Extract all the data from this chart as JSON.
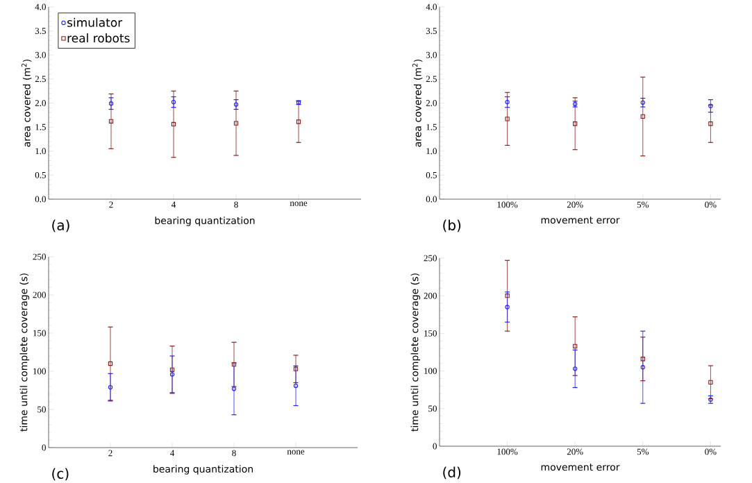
{
  "chart_data": [
    {
      "type": "scatter",
      "categories": [
        "2",
        "4",
        "8",
        "none"
      ],
      "xlabel": "bearing quantization",
      "ylabel": "area covered (m$^{2}$)",
      "ylim": [
        0,
        4
      ],
      "yticks": [
        {
          "value": 0,
          "label": "0.0"
        },
        0.5,
        {
          "value": 1,
          "label": "1.0"
        },
        1.5,
        {
          "value": 2,
          "label": "2.0"
        },
        2.5,
        {
          "value": 3,
          "label": "3.0"
        },
        3.5,
        {
          "value": 4,
          "label": "4.0"
        }
      ],
      "annotations": [
        "(a)"
      ],
      "legend": "top left",
      "series": [
        {
          "name": "simulator",
          "color": "#1f1fff",
          "marker": "circle",
          "values": [
            1.99,
            2.02,
            1.97,
            2.01
          ],
          "errors": [
            0.12,
            0.11,
            0.1,
            0.04
          ]
        },
        {
          "name": "real robots",
          "color": "#8b1a1a",
          "marker": "square",
          "values": [
            1.62,
            1.56,
            1.58,
            1.61
          ],
          "errors": [
            0.57,
            0.69,
            0.67,
            0.43
          ]
        }
      ]
    },
    {
      "type": "scatter",
      "categories": [
        "100%",
        "20%",
        "5%",
        "0%"
      ],
      "xlabel": "movement error",
      "ylabel": "area covered (m$^{2}$)",
      "ylim": [
        0,
        4
      ],
      "yticks": [
        {
          "value": 0,
          "label": "0.0"
        },
        0.5,
        {
          "value": 1,
          "label": "1.0"
        },
        1.5,
        {
          "value": 2,
          "label": "2.0"
        },
        2.5,
        {
          "value": 3,
          "label": "3.0"
        },
        3.5,
        {
          "value": 4,
          "label": "4.0"
        }
      ],
      "annotations": [
        "(b)"
      ],
      "series": [
        {
          "color": "#1f1fff",
          "marker": "circle",
          "values": [
            2.02,
            1.98,
            2.01,
            1.94
          ],
          "errors": [
            0.11,
            0.06,
            0.09,
            0.13
          ]
        },
        {
          "color": "#8b1a1a",
          "marker": "square",
          "values": [
            1.67,
            1.57,
            1.72,
            1.57
          ],
          "errors": [
            0.55,
            0.54,
            0.82,
            0.39
          ]
        }
      ]
    },
    {
      "type": "scatter",
      "categories": [
        "2",
        "4",
        "8",
        "none"
      ],
      "xlabel": "bearing quantization",
      "ylabel": "time until complete coverage (s)",
      "ylim": [
        0,
        250
      ],
      "yticks": [
        0,
        50,
        100,
        150,
        200,
        250
      ],
      "annotations": [
        "(c)"
      ],
      "series": [
        {
          "color": "#1f1fff",
          "marker": "circle",
          "values": [
            79,
            96,
            77,
            81
          ],
          "errors": [
            18,
            24,
            34,
            26
          ]
        },
        {
          "color": "#8b1a1a",
          "marker": "square",
          "values": [
            110,
            102,
            109,
            103
          ],
          "errors": [
            48,
            31,
            29,
            18
          ]
        }
      ]
    },
    {
      "type": "scatter",
      "categories": [
        "100%",
        "20%",
        "5%",
        "0%"
      ],
      "xlabel": "movement error",
      "ylabel": "time until complete coverage (s)",
      "ylim": [
        0,
        250
      ],
      "yticks": [
        0,
        50,
        100,
        150,
        200,
        250
      ],
      "annotations": [
        "(d)"
      ],
      "series": [
        {
          "color": "#1f1fff",
          "marker": "circle",
          "values": [
            185,
            103,
            105,
            62
          ],
          "errors": [
            20,
            25,
            48,
            5
          ]
        },
        {
          "color": "#8b1a1a",
          "marker": "square",
          "values": [
            200,
            133,
            116,
            85
          ],
          "errors": [
            47,
            39,
            29,
            22
          ]
        }
      ]
    }
  ]
}
